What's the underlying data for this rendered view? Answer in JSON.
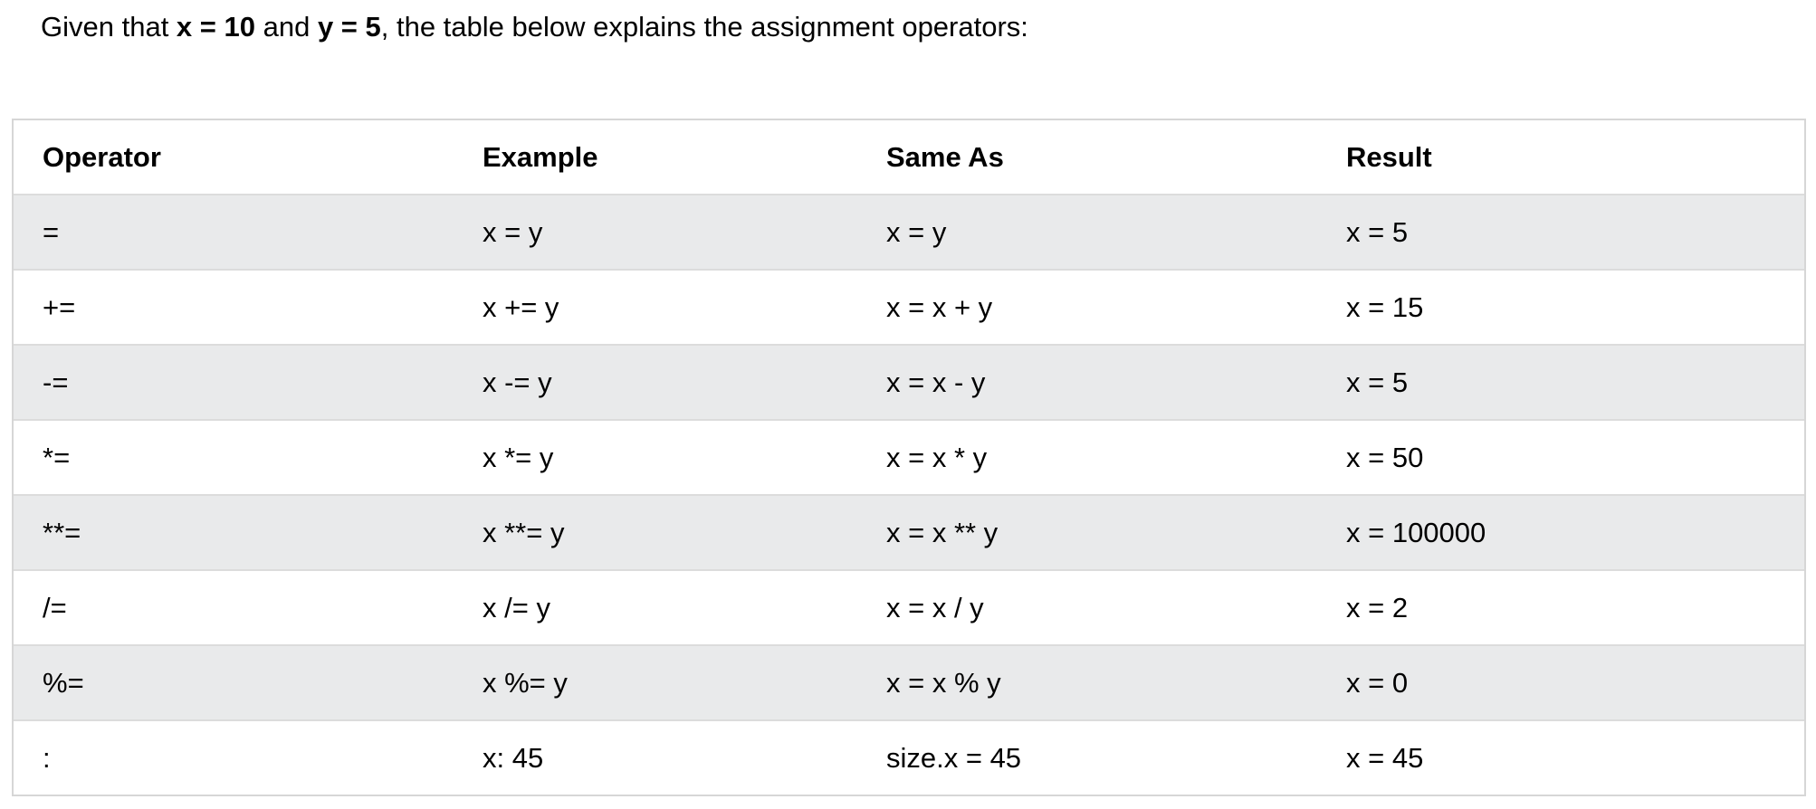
{
  "intro": {
    "prefix": "Given that ",
    "x_assign": "x = 10",
    "middle": " and ",
    "y_assign": "y = 5",
    "suffix": ", the table below explains the assignment operators:"
  },
  "table": {
    "headers": [
      "Operator",
      "Example",
      "Same As",
      "Result"
    ],
    "rows": [
      [
        "=",
        "x = y",
        "x = y",
        "x = 5"
      ],
      [
        "+=",
        "x += y",
        "x = x + y",
        "x = 15"
      ],
      [
        "-=",
        "x -= y",
        "x = x - y",
        "x = 5"
      ],
      [
        "*=",
        "x *= y",
        "x = x * y",
        "x = 50"
      ],
      [
        "**=",
        "x **= y",
        "x = x ** y",
        "x = 100000"
      ],
      [
        "/=",
        "x /= y",
        "x = x / y",
        "x = 2"
      ],
      [
        "%=",
        "x %= y",
        "x = x % y",
        "x = 0"
      ],
      [
        ":",
        "x: 45",
        "size.x = 45",
        "x = 45"
      ]
    ]
  }
}
